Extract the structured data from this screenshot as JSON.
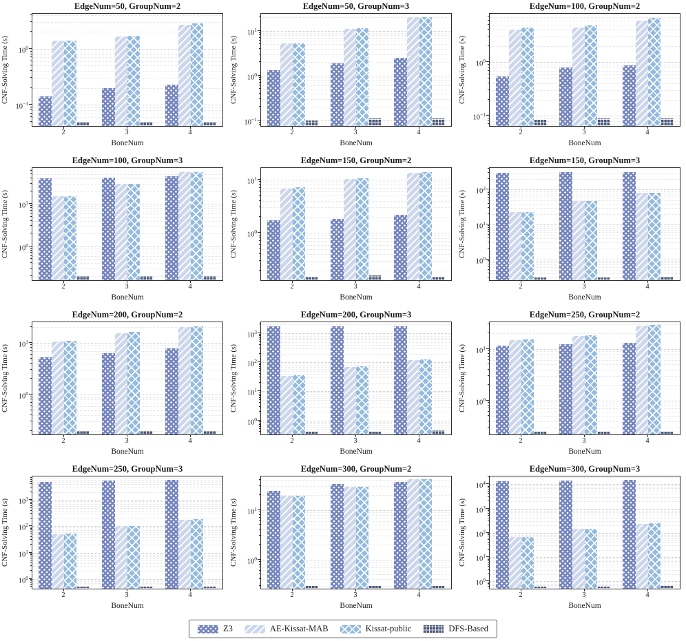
{
  "page": {
    "background": "#ffffff"
  },
  "legend": {
    "items": [
      {
        "label": "Z3",
        "color": "#7585bd",
        "pattern": "p-dots"
      },
      {
        "label": "AE-Kissat-MAB",
        "color": "#cdd7ec",
        "pattern": "p-diag"
      },
      {
        "label": "Kissat-public",
        "color": "#94badf",
        "pattern": "p-cross"
      },
      {
        "label": "DFS-Based",
        "color": "#4d5979",
        "pattern": "p-grid"
      }
    ]
  },
  "chart_data": [
    {
      "type": "bar",
      "title": "EdgeNum=50, GroupNum=2",
      "xlabel": "BoneNum",
      "ylabel": "CNF-Solving Time (s)",
      "categories": [
        "2",
        "3",
        "4"
      ],
      "yscale": "log",
      "ylim": [
        0.042,
        4.2
      ],
      "grid": true,
      "legend_position": "bottom-figure",
      "series": [
        {
          "name": "Z3",
          "values": [
            0.14,
            0.2,
            0.23
          ]
        },
        {
          "name": "AE-Kissat-MAB",
          "values": [
            1.4,
            1.65,
            2.7
          ]
        },
        {
          "name": "Kissat-public",
          "values": [
            1.4,
            1.72,
            2.8
          ]
        },
        {
          "name": "DFS-Based",
          "values": [
            0.05,
            0.05,
            0.05
          ]
        }
      ]
    },
    {
      "type": "bar",
      "title": "EdgeNum=50, GroupNum=3",
      "xlabel": "BoneNum",
      "ylabel": "CNF-Solving Time (s)",
      "categories": [
        "2",
        "3",
        "4"
      ],
      "yscale": "log",
      "ylim": [
        0.075,
        24
      ],
      "grid": true,
      "legend_position": "bottom-figure",
      "series": [
        {
          "name": "Z3",
          "values": [
            1.3,
            1.9,
            2.5
          ]
        },
        {
          "name": "AE-Kissat-MAB",
          "values": [
            5.2,
            11,
            20
          ]
        },
        {
          "name": "Kissat-public",
          "values": [
            5.3,
            11.3,
            20
          ]
        },
        {
          "name": "DFS-Based",
          "values": [
            0.1,
            0.11,
            0.11
          ]
        }
      ]
    },
    {
      "type": "bar",
      "title": "EdgeNum=100, GroupNum=2",
      "xlabel": "BoneNum",
      "ylabel": "CNF-Solving Time (s)",
      "categories": [
        "2",
        "3",
        "4"
      ],
      "yscale": "log",
      "ylim": [
        0.065,
        8
      ],
      "grid": true,
      "legend_position": "bottom-figure",
      "series": [
        {
          "name": "Z3",
          "values": [
            0.55,
            0.8,
            0.87
          ]
        },
        {
          "name": "AE-Kissat-MAB",
          "values": [
            4.0,
            4.5,
            6.0
          ]
        },
        {
          "name": "Kissat-public",
          "values": [
            4.4,
            4.8,
            6.8
          ]
        },
        {
          "name": "DFS-Based",
          "values": [
            0.085,
            0.09,
            0.09
          ]
        }
      ]
    },
    {
      "type": "bar",
      "title": "EdgeNum=100, GroupNum=3",
      "xlabel": "BoneNum",
      "ylabel": "CNF-Solving Time (s)",
      "categories": [
        "2",
        "3",
        "4"
      ],
      "yscale": "log",
      "ylim": [
        0.16,
        70
      ],
      "grid": true,
      "legend_position": "bottom-figure",
      "series": [
        {
          "name": "Z3",
          "values": [
            40,
            42,
            45
          ]
        },
        {
          "name": "AE-Kissat-MAB",
          "values": [
            15,
            30,
            55
          ]
        },
        {
          "name": "Kissat-public",
          "values": [
            15,
            30,
            55
          ]
        },
        {
          "name": "DFS-Based",
          "values": [
            0.2,
            0.2,
            0.2
          ]
        }
      ]
    },
    {
      "type": "bar",
      "title": "EdgeNum=150, GroupNum=2",
      "xlabel": "BoneNum",
      "ylabel": "CNF-Solving Time (s)",
      "categories": [
        "2",
        "3",
        "4"
      ],
      "yscale": "log",
      "ylim": [
        0.13,
        16.5
      ],
      "grid": true,
      "legend_position": "bottom-figure",
      "series": [
        {
          "name": "Z3",
          "values": [
            1.7,
            1.85,
            2.2
          ]
        },
        {
          "name": "AE-Kissat-MAB",
          "values": [
            6.8,
            10.2,
            13.5
          ]
        },
        {
          "name": "Kissat-public",
          "values": [
            7.2,
            10.5,
            14
          ]
        },
        {
          "name": "DFS-Based",
          "values": [
            0.15,
            0.16,
            0.15
          ]
        }
      ]
    },
    {
      "type": "bar",
      "title": "EdgeNum=150, GroupNum=3",
      "xlabel": "BoneNum",
      "ylabel": "CNF-Solving Time (s)",
      "categories": [
        "2",
        "3",
        "4"
      ],
      "yscale": "log",
      "ylim": [
        0.25,
        420
      ],
      "grid": true,
      "legend_position": "bottom-figure",
      "series": [
        {
          "name": "Z3",
          "values": [
            300,
            320,
            320
          ]
        },
        {
          "name": "AE-Kissat-MAB",
          "values": [
            23,
            48,
            80
          ]
        },
        {
          "name": "Kissat-public",
          "values": [
            23,
            48,
            80
          ]
        },
        {
          "name": "DFS-Based",
          "values": [
            0.3,
            0.3,
            0.32
          ]
        }
      ]
    },
    {
      "type": "bar",
      "title": "EdgeNum=200, GroupNum=2",
      "xlabel": "BoneNum",
      "ylabel": "CNF-Solving Time (s)",
      "categories": [
        "2",
        "3",
        "4"
      ],
      "yscale": "log",
      "ylim": [
        0.17,
        25
      ],
      "grid": true,
      "legend_position": "bottom-figure",
      "series": [
        {
          "name": "Z3",
          "values": [
            5.2,
            6.3,
            7.8
          ]
        },
        {
          "name": "AE-Kissat-MAB",
          "values": [
            10.5,
            15.5,
            20
          ]
        },
        {
          "name": "Kissat-public",
          "values": [
            11,
            16.5,
            21
          ]
        },
        {
          "name": "DFS-Based",
          "values": [
            0.2,
            0.2,
            0.2
          ]
        }
      ]
    },
    {
      "type": "bar",
      "title": "EdgeNum=200, GroupNum=3",
      "xlabel": "BoneNum",
      "ylabel": "CNF-Solving Time (s)",
      "categories": [
        "2",
        "3",
        "4"
      ],
      "yscale": "log",
      "ylim": [
        0.33,
        2400
      ],
      "grid": true,
      "legend_position": "bottom-figure",
      "series": [
        {
          "name": "Z3",
          "values": [
            1700,
            1700,
            1700
          ]
        },
        {
          "name": "AE-Kissat-MAB",
          "values": [
            35,
            70,
            120
          ]
        },
        {
          "name": "Kissat-public",
          "values": [
            36,
            72,
            125
          ]
        },
        {
          "name": "DFS-Based",
          "values": [
            0.4,
            0.4,
            0.45
          ]
        }
      ]
    },
    {
      "type": "bar",
      "title": "EdgeNum=250, GroupNum=2",
      "xlabel": "BoneNum",
      "ylabel": "CNF-Solving Time (s)",
      "categories": [
        "2",
        "3",
        "4"
      ],
      "yscale": "log",
      "ylim": [
        0.22,
        33
      ],
      "grid": true,
      "legend_position": "bottom-figure",
      "series": [
        {
          "name": "Z3",
          "values": [
            11.5,
            12.5,
            13
          ]
        },
        {
          "name": "AE-Kissat-MAB",
          "values": [
            15,
            18,
            28
          ]
        },
        {
          "name": "Kissat-public",
          "values": [
            15.5,
            18.5,
            29
          ]
        },
        {
          "name": "DFS-Based",
          "values": [
            0.25,
            0.25,
            0.25
          ]
        }
      ]
    },
    {
      "type": "bar",
      "title": "EdgeNum=250, GroupNum=3",
      "xlabel": "BoneNum",
      "ylabel": "CNF-Solving Time (s)",
      "categories": [
        "2",
        "3",
        "4"
      ],
      "yscale": "log",
      "ylim": [
        0.42,
        8000
      ],
      "grid": true,
      "legend_position": "bottom-figure",
      "series": [
        {
          "name": "Z3",
          "values": [
            5000,
            5500,
            6000
          ]
        },
        {
          "name": "AE-Kissat-MAB",
          "values": [
            50,
            105,
            180
          ]
        },
        {
          "name": "Kissat-public",
          "values": [
            52,
            105,
            185
          ]
        },
        {
          "name": "DFS-Based",
          "values": [
            0.5,
            0.5,
            0.5
          ]
        }
      ]
    },
    {
      "type": "bar",
      "title": "EdgeNum=300, GroupNum=2",
      "xlabel": "BoneNum",
      "ylabel": "CNF-Solving Time (s)",
      "categories": [
        "2",
        "3",
        "4"
      ],
      "yscale": "log",
      "ylim": [
        0.26,
        47
      ],
      "grid": true,
      "legend_position": "bottom-figure",
      "series": [
        {
          "name": "Z3",
          "values": [
            24,
            33,
            36
          ]
        },
        {
          "name": "AE-Kissat-MAB",
          "values": [
            19,
            29,
            41
          ]
        },
        {
          "name": "Kissat-public",
          "values": [
            19.5,
            29.5,
            42
          ]
        },
        {
          "name": "DFS-Based",
          "values": [
            0.3,
            0.3,
            0.3
          ]
        }
      ]
    },
    {
      "type": "bar",
      "title": "EdgeNum=300, GroupNum=3",
      "xlabel": "BoneNum",
      "ylabel": "CNF-Solving Time (s)",
      "categories": [
        "2",
        "3",
        "4"
      ],
      "yscale": "log",
      "ylim": [
        0.5,
        21000
      ],
      "grid": true,
      "legend_position": "bottom-figure",
      "series": [
        {
          "name": "Z3",
          "values": [
            13000,
            14000,
            15000
          ]
        },
        {
          "name": "AE-Kissat-MAB",
          "values": [
            65,
            150,
            230
          ]
        },
        {
          "name": "Kissat-public",
          "values": [
            67,
            150,
            240
          ]
        },
        {
          "name": "DFS-Based",
          "values": [
            0.6,
            0.6,
            0.65
          ]
        }
      ]
    }
  ]
}
